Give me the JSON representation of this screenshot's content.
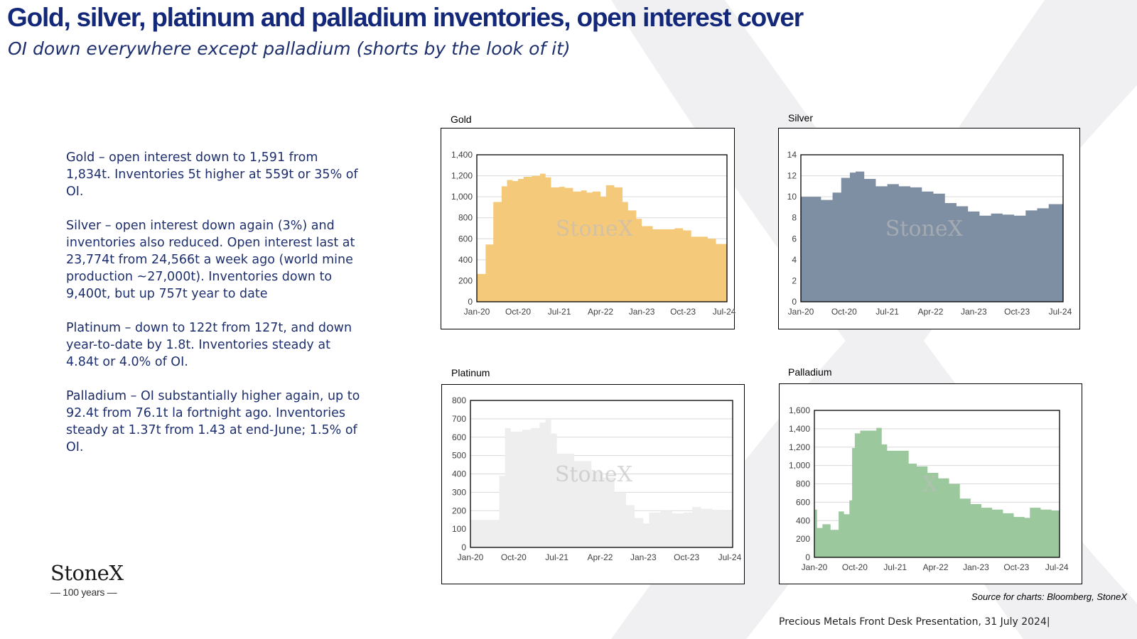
{
  "header": {
    "title": "Gold, silver, platinum and palladium inventories, open interest cover",
    "subtitle": "OI down everywhere except palladium (shorts by the look of it)"
  },
  "notes": [
    {
      "metal": "Gold",
      "text": " – open interest  down to 1,591 from 1,834t. Inventories 5t higher at 559t or 35% of OI."
    },
    {
      "metal": "Silver",
      "text": " – open interest down again (3%) and inventories also reduced.  Open interest last at 23,774t from 24,566t a week ago (world mine production ~27,000t).  Inventories down to 9,400t, but up 757t year to date"
    },
    {
      "metal": "Platinum",
      "text": " – down to 122t from 127t, and down year-to-date by 1.8t.  Inventories steady at 4.84t or 4.0% of OI."
    },
    {
      "metal": "Palladium",
      "text": " – OI substantially higher again, up to 92.4t from 76.1t la fortnight ago. Inventories steady at 1.37t from 1.43 at end-June; 1.5% of OI."
    }
  ],
  "brand": {
    "name": "StoneX",
    "sub": "— 100 years —"
  },
  "source": "Source for charts: Bloomberg, StoneX",
  "footer": "Precious Metals Front Desk Presentation, 31 July 2024|",
  "chart_data": [
    {
      "type": "area",
      "title": "Gold",
      "color": "#f5c97a",
      "watermark": "StoneX",
      "x_tick_labels": [
        "Jan-20",
        "Oct-20",
        "Jul-21",
        "Apr-22",
        "Jan-23",
        "Oct-23",
        "Jul-24"
      ],
      "y_tick_labels": [
        "0",
        "200",
        "400",
        "600",
        "800",
        "1,000",
        "1,200",
        "1,400"
      ],
      "ylim": [
        0,
        1400
      ],
      "x": [
        2020.0,
        2020.15,
        2020.16,
        2020.3,
        2020.45,
        2020.55,
        2020.65,
        2020.75,
        2020.85,
        2021.0,
        2021.15,
        2021.25,
        2021.35,
        2021.5,
        2021.6,
        2021.75,
        2021.9,
        2022.0,
        2022.1,
        2022.25,
        2022.35,
        2022.5,
        2022.65,
        2022.75,
        2022.9,
        2023.0,
        2023.2,
        2023.4,
        2023.6,
        2023.75,
        2023.9,
        2024.0,
        2024.2,
        2024.35,
        2024.55
      ],
      "y": [
        265,
        265,
        545,
        950,
        1100,
        1160,
        1150,
        1170,
        1190,
        1200,
        1220,
        1185,
        1090,
        1095,
        1085,
        1050,
        1060,
        1040,
        1050,
        1000,
        1110,
        1090,
        950,
        870,
        790,
        720,
        690,
        690,
        700,
        680,
        620,
        620,
        600,
        550,
        550
      ]
    },
    {
      "type": "area",
      "title": "Silver",
      "color": "#7f8fa3",
      "watermark": "StoneX",
      "x_tick_labels": [
        "Jan-20",
        "Oct-20",
        "Jul-21",
        "Apr-22",
        "Jan-23",
        "Oct-23",
        "Jul-24"
      ],
      "y_tick_labels": [
        "0",
        "2",
        "4",
        "6",
        "8",
        "10",
        "12",
        "14"
      ],
      "ylim": [
        0,
        14
      ],
      "x": [
        2020.0,
        2020.2,
        2020.35,
        2020.55,
        2020.7,
        2020.85,
        2020.95,
        2021.1,
        2021.3,
        2021.5,
        2021.7,
        2021.9,
        2022.1,
        2022.3,
        2022.5,
        2022.7,
        2022.9,
        2023.1,
        2023.3,
        2023.5,
        2023.7,
        2023.9,
        2024.1,
        2024.3,
        2024.45,
        2024.55
      ],
      "y": [
        10.0,
        10.0,
        9.7,
        10.4,
        11.8,
        12.3,
        12.4,
        11.7,
        11.0,
        11.2,
        11.0,
        10.9,
        10.5,
        10.3,
        9.4,
        9.1,
        8.6,
        8.2,
        8.4,
        8.3,
        8.2,
        8.7,
        8.9,
        9.3,
        9.3,
        9.6
      ]
    },
    {
      "type": "area",
      "title": "Platinum",
      "color": "#eeeeee",
      "watermark": "StoneX",
      "x_tick_labels": [
        "Jan-20",
        "Oct-20",
        "Jul-21",
        "Apr-22",
        "Jan-23",
        "Oct-23",
        "Jul-24"
      ],
      "y_tick_labels": [
        "0",
        "100",
        "200",
        "300",
        "400",
        "500",
        "600",
        "700",
        "800"
      ],
      "ylim": [
        0,
        800
      ],
      "x": [
        2020.0,
        2020.2,
        2020.35,
        2020.5,
        2020.6,
        2020.7,
        2020.9,
        2021.05,
        2021.2,
        2021.3,
        2021.4,
        2021.5,
        2021.6,
        2021.8,
        2021.95,
        2022.1,
        2022.3,
        2022.5,
        2022.7,
        2022.85,
        2023.0,
        2023.1,
        2023.3,
        2023.5,
        2023.7,
        2023.85,
        2024.0,
        2024.2,
        2024.4,
        2024.55
      ],
      "y": [
        150,
        150,
        150,
        390,
        650,
        630,
        640,
        650,
        680,
        700,
        620,
        510,
        510,
        470,
        470,
        410,
        380,
        300,
        230,
        160,
        130,
        190,
        200,
        185,
        190,
        220,
        210,
        205,
        200,
        150
      ]
    },
    {
      "type": "area",
      "title": "Palladium",
      "color": "#9bc89d",
      "watermark": "X",
      "x_tick_labels": [
        "Jan-20",
        "Oct-20",
        "Jul-21",
        "Apr-22",
        "Jan-23",
        "Oct-23",
        "Jul-24"
      ],
      "y_tick_labels": [
        "0",
        "200",
        "400",
        "600",
        "800",
        "1,000",
        "1,200",
        "1,400",
        "1,600"
      ],
      "ylim": [
        0,
        1600
      ],
      "x": [
        2020.0,
        2020.05,
        2020.15,
        2020.3,
        2020.45,
        2020.55,
        2020.65,
        2020.7,
        2020.75,
        2020.85,
        2021.0,
        2021.15,
        2021.25,
        2021.35,
        2021.6,
        2021.75,
        2021.9,
        2022.1,
        2022.3,
        2022.5,
        2022.7,
        2022.9,
        2023.1,
        2023.3,
        2023.5,
        2023.7,
        2023.9,
        2024.0,
        2024.2,
        2024.4,
        2024.55
      ],
      "y": [
        520,
        320,
        360,
        300,
        500,
        470,
        620,
        1190,
        1350,
        1380,
        1380,
        1410,
        1230,
        1160,
        1160,
        1020,
        990,
        920,
        860,
        800,
        640,
        580,
        540,
        520,
        480,
        440,
        430,
        540,
        520,
        510,
        440
      ]
    }
  ]
}
